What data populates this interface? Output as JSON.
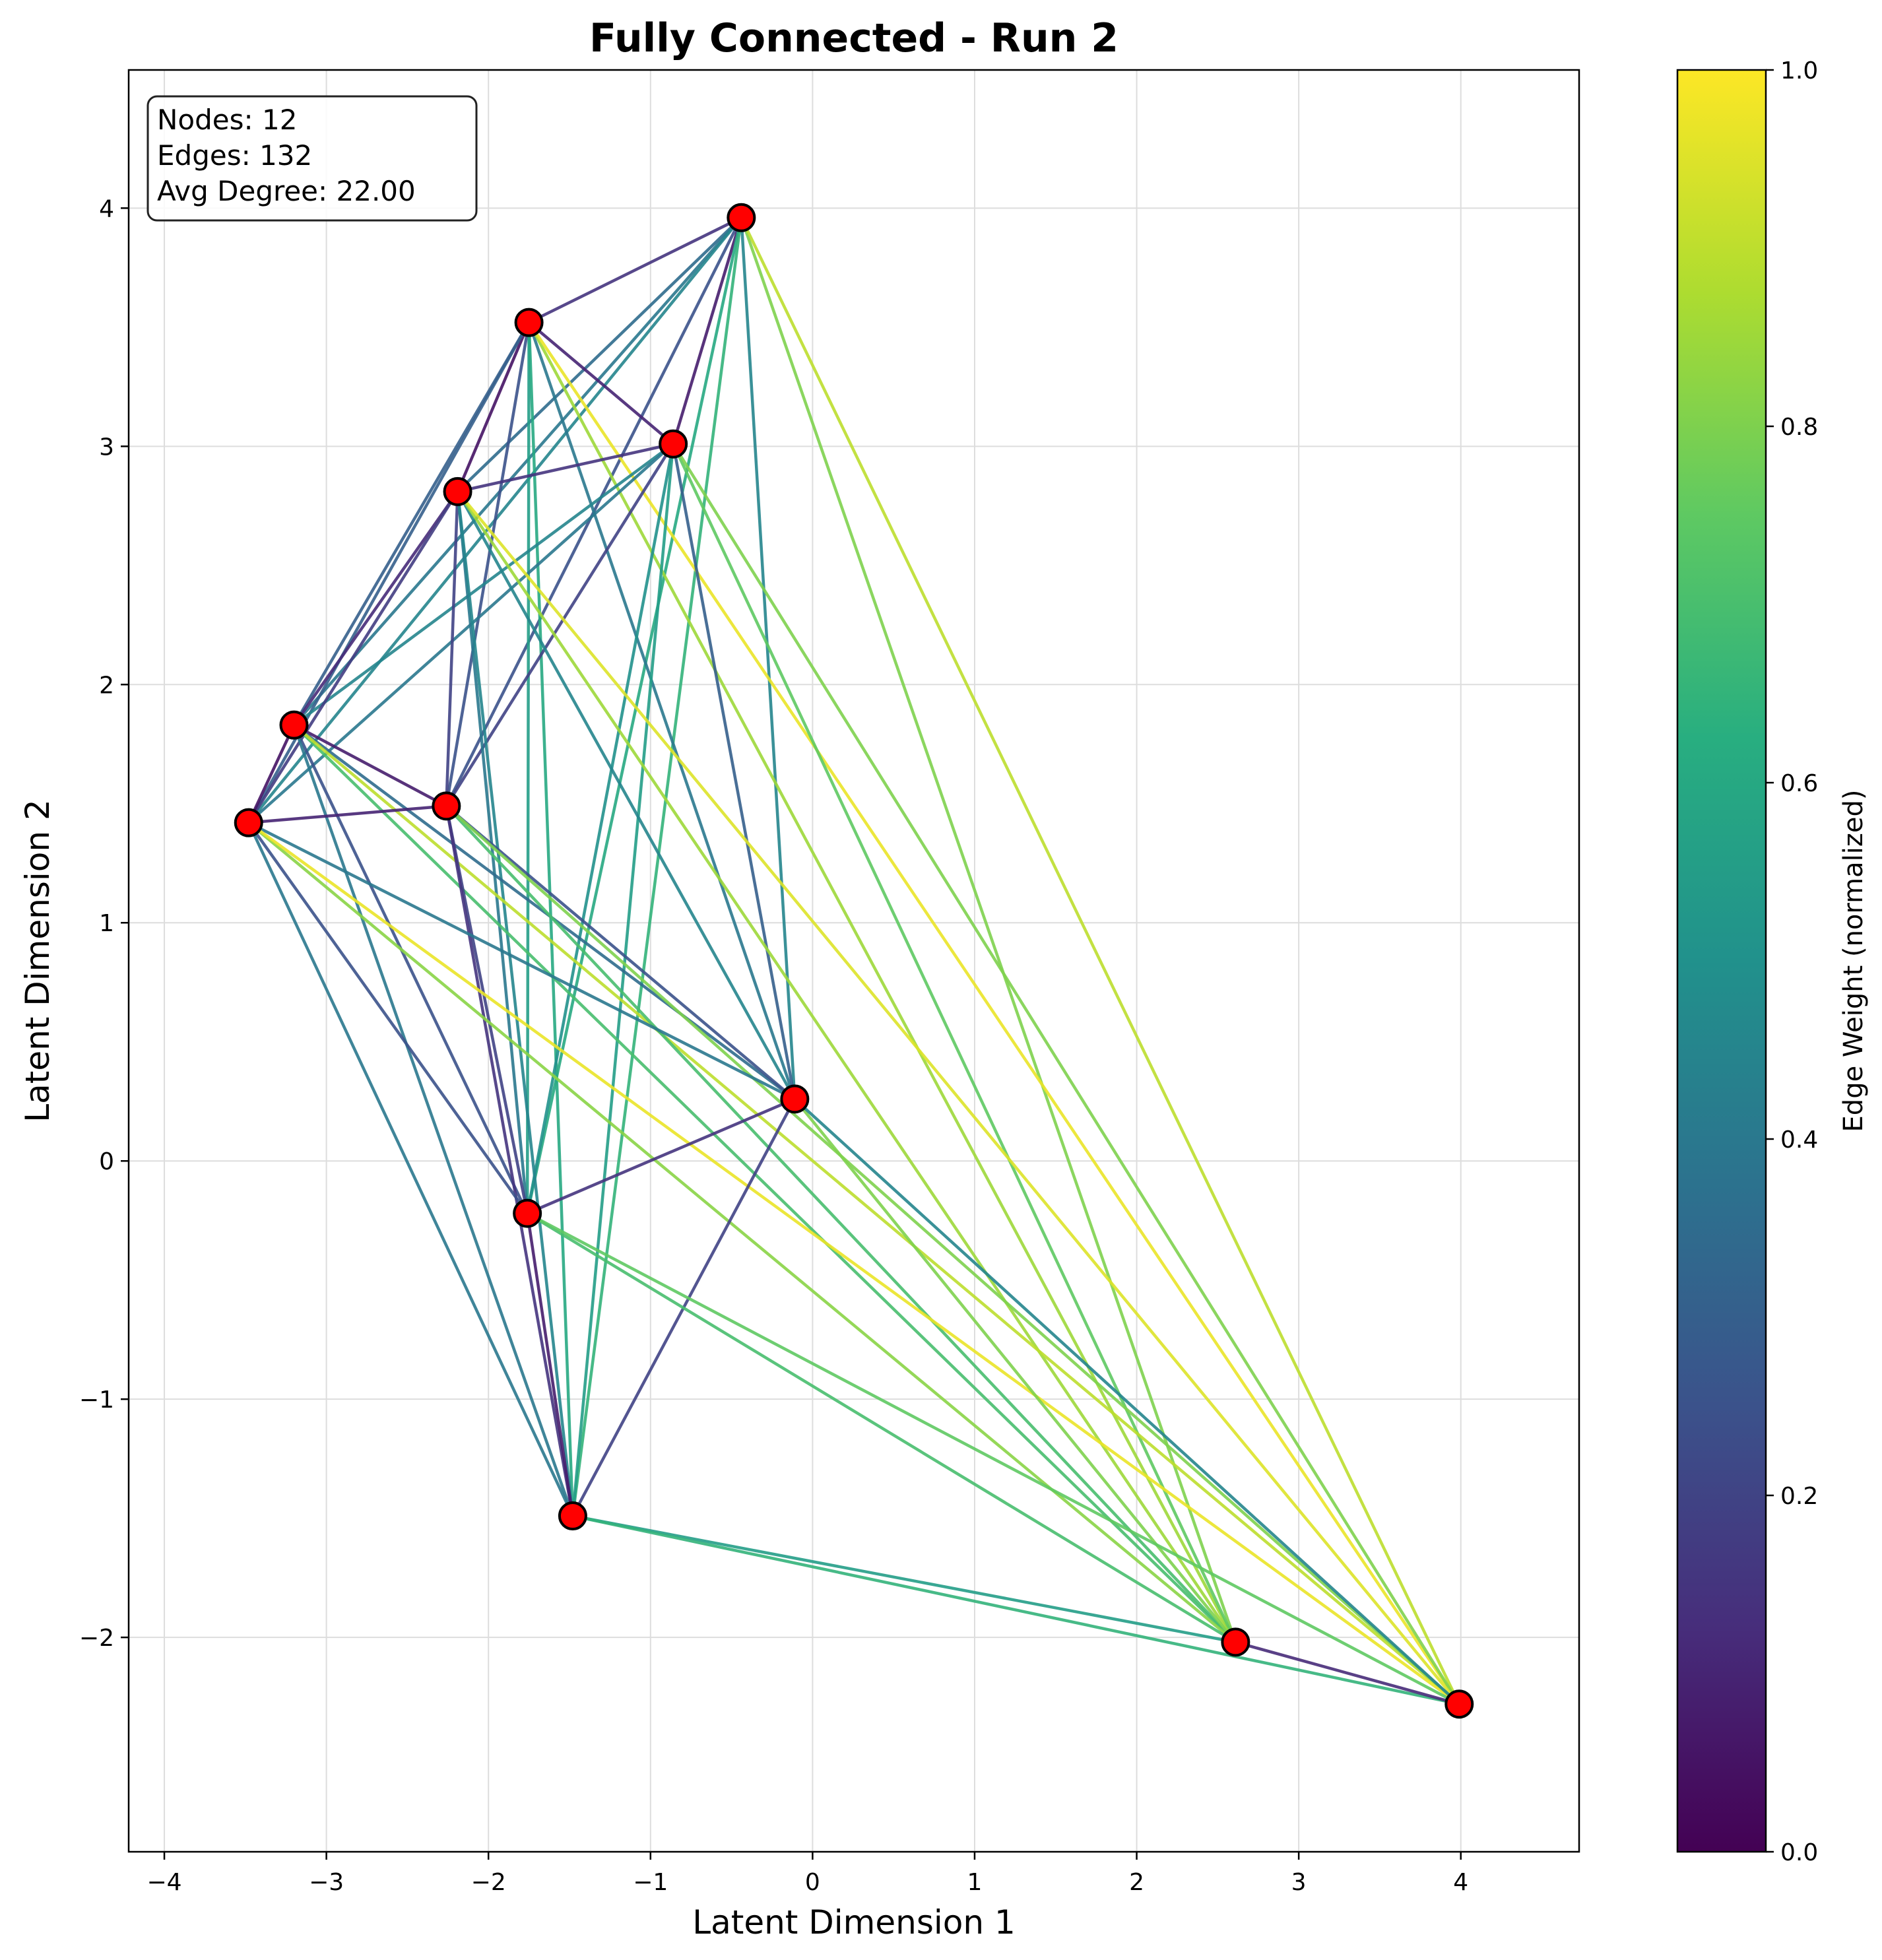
{
  "chart_data": {
    "type": "network",
    "title": "Fully Connected - Run 2",
    "xlabel": "Latent Dimension 1",
    "ylabel": "Latent Dimension 2",
    "xlim": [
      -4.22,
      4.73
    ],
    "ylim": [
      -2.9,
      4.58
    ],
    "xticks": [
      -4,
      -3,
      -2,
      -1,
      0,
      1,
      2,
      3,
      4
    ],
    "yticks": [
      -2,
      -1,
      0,
      1,
      2,
      3,
      4
    ],
    "grid": true,
    "colorbar": {
      "label": "Edge Weight (normalized)",
      "colormap": "viridis",
      "range": [
        0.0,
        1.0
      ],
      "ticks": [
        "0.0",
        "0.2",
        "0.4",
        "0.6",
        "0.8",
        "1.0"
      ]
    },
    "stats": [
      "Nodes: 12",
      "Edges: 132",
      "Avg Degree: 22.00"
    ],
    "node_color": "#ff0000",
    "nodes": [
      {
        "x": -0.44,
        "y": 3.96
      },
      {
        "x": -1.75,
        "y": 3.52
      },
      {
        "x": -0.86,
        "y": 3.01
      },
      {
        "x": -2.19,
        "y": 2.81
      },
      {
        "x": -3.2,
        "y": 1.83
      },
      {
        "x": -2.26,
        "y": 1.49
      },
      {
        "x": -3.48,
        "y": 1.42
      },
      {
        "x": -0.11,
        "y": 0.26
      },
      {
        "x": -1.76,
        "y": -0.22
      },
      {
        "x": -1.48,
        "y": -1.49
      },
      {
        "x": 2.61,
        "y": -2.02
      },
      {
        "x": 3.99,
        "y": -2.28
      }
    ],
    "edges": [
      [
        0,
        1,
        0.15
      ],
      [
        0,
        2,
        0.08
      ],
      [
        0,
        3,
        0.35
      ],
      [
        0,
        4,
        0.4
      ],
      [
        0,
        5,
        0.25
      ],
      [
        0,
        6,
        0.45
      ],
      [
        0,
        7,
        0.45
      ],
      [
        0,
        8,
        0.6
      ],
      [
        0,
        9,
        0.65
      ],
      [
        0,
        10,
        0.8
      ],
      [
        0,
        11,
        0.9
      ],
      [
        1,
        2,
        0.1
      ],
      [
        1,
        3,
        0.05
      ],
      [
        1,
        4,
        0.3
      ],
      [
        1,
        5,
        0.25
      ],
      [
        1,
        6,
        0.3
      ],
      [
        1,
        7,
        0.4
      ],
      [
        1,
        8,
        0.55
      ],
      [
        1,
        9,
        0.6
      ],
      [
        1,
        10,
        0.85
      ],
      [
        1,
        11,
        0.97
      ],
      [
        2,
        3,
        0.15
      ],
      [
        2,
        4,
        0.45
      ],
      [
        2,
        5,
        0.2
      ],
      [
        2,
        6,
        0.4
      ],
      [
        2,
        7,
        0.3
      ],
      [
        2,
        8,
        0.5
      ],
      [
        2,
        9,
        0.55
      ],
      [
        2,
        10,
        0.75
      ],
      [
        2,
        11,
        0.8
      ],
      [
        3,
        4,
        0.12
      ],
      [
        3,
        5,
        0.2
      ],
      [
        3,
        6,
        0.18
      ],
      [
        3,
        7,
        0.45
      ],
      [
        3,
        8,
        0.4
      ],
      [
        3,
        9,
        0.45
      ],
      [
        3,
        10,
        0.85
      ],
      [
        3,
        11,
        0.95
      ],
      [
        4,
        5,
        0.08
      ],
      [
        4,
        6,
        0.05
      ],
      [
        4,
        7,
        0.35
      ],
      [
        4,
        8,
        0.25
      ],
      [
        4,
        9,
        0.4
      ],
      [
        4,
        10,
        0.7
      ],
      [
        4,
        11,
        0.9
      ],
      [
        5,
        6,
        0.1
      ],
      [
        5,
        7,
        0.25
      ],
      [
        5,
        8,
        0.2
      ],
      [
        5,
        9,
        0.15
      ],
      [
        5,
        10,
        0.7
      ],
      [
        5,
        11,
        0.8
      ],
      [
        6,
        7,
        0.4
      ],
      [
        6,
        8,
        0.25
      ],
      [
        6,
        9,
        0.4
      ],
      [
        6,
        10,
        0.82
      ],
      [
        6,
        11,
        0.97
      ],
      [
        7,
        8,
        0.15
      ],
      [
        7,
        9,
        0.2
      ],
      [
        7,
        10,
        0.8
      ],
      [
        7,
        11,
        0.45
      ],
      [
        8,
        9,
        0.08
      ],
      [
        8,
        10,
        0.7
      ],
      [
        8,
        11,
        0.75
      ],
      [
        9,
        10,
        0.55
      ],
      [
        9,
        11,
        0.65
      ],
      [
        10,
        11,
        0.12
      ]
    ]
  }
}
